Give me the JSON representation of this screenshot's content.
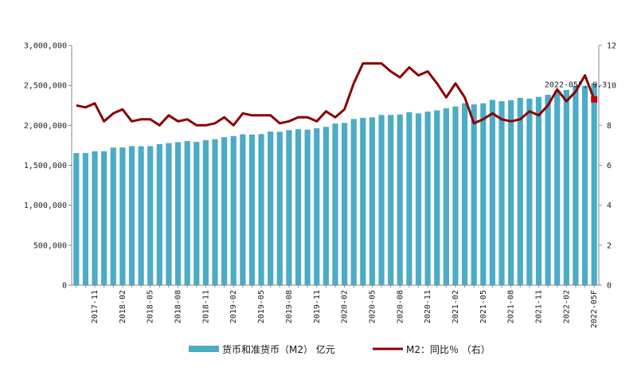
{
  "chart_data": {
    "type": "bar+line",
    "title": "",
    "categories": [
      "2017-09",
      "2017-10",
      "2017-11",
      "2017-12",
      "2018-01",
      "2018-02",
      "2018-03",
      "2018-04",
      "2018-05",
      "2018-06",
      "2018-07",
      "2018-08",
      "2018-09",
      "2018-10",
      "2018-11",
      "2018-12",
      "2019-01",
      "2019-02",
      "2019-03",
      "2019-04",
      "2019-05",
      "2019-06",
      "2019-07",
      "2019-08",
      "2019-09",
      "2019-10",
      "2019-11",
      "2019-12",
      "2020-01",
      "2020-02",
      "2020-03",
      "2020-04",
      "2020-05",
      "2020-06",
      "2020-07",
      "2020-08",
      "2020-09",
      "2020-10",
      "2020-11",
      "2020-12",
      "2021-01",
      "2021-02",
      "2021-03",
      "2021-04",
      "2021-05",
      "2021-06",
      "2021-07",
      "2021-08",
      "2021-09",
      "2021-10",
      "2021-11",
      "2021-12",
      "2022-01",
      "2022-02",
      "2022-03",
      "2022-04",
      "2022-05F"
    ],
    "tick_labels": [
      "2017-11",
      "2018-02",
      "2018-05",
      "2018-08",
      "2018-11",
      "2019-02",
      "2019-05",
      "2019-08",
      "2019-11",
      "2020-02",
      "2020-05",
      "2020-08",
      "2020-11",
      "2021-02",
      "2021-05",
      "2021-08",
      "2021-11",
      "2022-02",
      "2022-05F"
    ],
    "series": [
      {
        "name": "货币和准货币（M2） 亿元",
        "type": "bar",
        "axis": "left",
        "color": "#4bacc6",
        "values": [
          1653000,
          1654000,
          1675000,
          1676000,
          1721000,
          1723000,
          1740000,
          1738000,
          1740000,
          1765000,
          1778000,
          1790000,
          1803000,
          1793000,
          1815000,
          1826000,
          1852000,
          1867000,
          1888000,
          1885000,
          1891000,
          1922000,
          1920000,
          1940000,
          1952000,
          1946000,
          1963000,
          1981000,
          2022000,
          2030000,
          2080000,
          2093000,
          2100000,
          2130000,
          2130000,
          2136000,
          2165000,
          2150000,
          2172000,
          2187000,
          2213000,
          2236000,
          2276000,
          2262000,
          2276000,
          2318000,
          2302000,
          2315000,
          2343000,
          2334000,
          2356000,
          2382000,
          2431000,
          2443000,
          2498000,
          2495000,
          2525000
        ]
      },
      {
        "name": "M2：同比％（右）",
        "type": "line",
        "axis": "right",
        "color": "#8b0000",
        "values": [
          9.0,
          8.9,
          9.1,
          8.2,
          8.6,
          8.8,
          8.2,
          8.3,
          8.3,
          8.0,
          8.5,
          8.2,
          8.3,
          8.0,
          8.0,
          8.1,
          8.4,
          8.0,
          8.6,
          8.5,
          8.5,
          8.5,
          8.1,
          8.2,
          8.4,
          8.4,
          8.2,
          8.7,
          8.4,
          8.8,
          10.1,
          11.1,
          11.1,
          11.1,
          10.7,
          10.4,
          10.9,
          10.5,
          10.7,
          10.1,
          9.4,
          10.1,
          9.4,
          8.1,
          8.3,
          8.6,
          8.3,
          8.2,
          8.3,
          8.7,
          8.5,
          9.0,
          9.8,
          9.2,
          9.7,
          10.5,
          9.3
        ]
      }
    ],
    "y_left": {
      "ylim": [
        0,
        3000000
      ],
      "ticks": [
        0,
        500000,
        1000000,
        1500000,
        2000000,
        2500000,
        3000000
      ],
      "tick_labels": [
        "0",
        "500,000",
        "1,000,000",
        "1,500,000",
        "2,000,000",
        "2,500,000",
        "3,000,000"
      ]
    },
    "y_right": {
      "ylim": [
        0,
        12
      ],
      "ticks": [
        0,
        2,
        4,
        6,
        8,
        10,
        12
      ],
      "tick_labels": [
        "0",
        "2",
        "4",
        "6",
        "8",
        "10",
        "12"
      ]
    },
    "annotation": {
      "text": "2022-05F, 9.3",
      "x": "2022-05F",
      "y": 9.3
    },
    "legend": {
      "position": "bottom",
      "bar_label": "货币和准货币（M2） 亿元",
      "line_label": "M2：同比％ （右）"
    },
    "grid": false
  }
}
